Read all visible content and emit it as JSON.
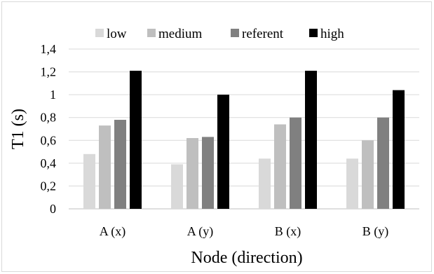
{
  "chart_data": {
    "type": "bar",
    "title": "",
    "xlabel": "Node (direction)",
    "ylabel": "T1 (s)",
    "categories": [
      "A (x)",
      "A (y)",
      "B (x)",
      "B (y)"
    ],
    "series": [
      {
        "name": "low",
        "values": [
          0.48,
          0.39,
          0.44,
          0.44
        ],
        "color": "#d9d9d9"
      },
      {
        "name": "medium",
        "values": [
          0.73,
          0.62,
          0.74,
          0.6
        ],
        "color": "#bfbfbf"
      },
      {
        "name": "referent",
        "values": [
          0.78,
          0.63,
          0.8,
          0.8
        ],
        "color": "#808080"
      },
      {
        "name": "high",
        "values": [
          1.21,
          1.0,
          1.21,
          1.04
        ],
        "color": "#000000"
      }
    ],
    "ylim": [
      0,
      1.4
    ],
    "yticks": [
      0,
      0.2,
      0.4,
      0.6,
      0.8,
      1,
      1.2,
      1.4
    ],
    "ytick_labels": [
      "0",
      "0,2",
      "0,4",
      "0,6",
      "0,8",
      "1",
      "1,2",
      "1,4"
    ],
    "grid": true,
    "legend_position": "top"
  }
}
